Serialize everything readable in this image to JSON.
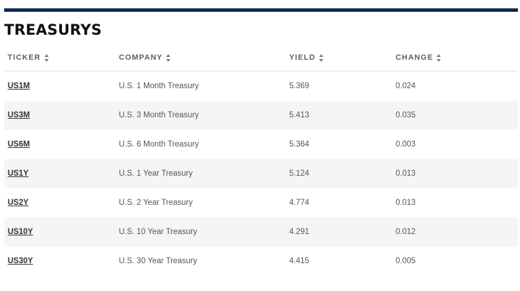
{
  "title": "TREASURYS",
  "columns": {
    "ticker": "TICKER",
    "company": "COMPANY",
    "yield": "YIELD",
    "change": "CHANGE"
  },
  "rows": [
    {
      "ticker": "US1M",
      "company": "U.S. 1 Month Treasury",
      "yield": "5.369",
      "change": "0.024"
    },
    {
      "ticker": "US3M",
      "company": "U.S. 3 Month Treasury",
      "yield": "5.413",
      "change": "0.035"
    },
    {
      "ticker": "US6M",
      "company": "U.S. 6 Month Treasury",
      "yield": "5.364",
      "change": "0.003"
    },
    {
      "ticker": "US1Y",
      "company": "U.S. 1 Year Treasury",
      "yield": "5.124",
      "change": "0.013"
    },
    {
      "ticker": "US2Y",
      "company": "U.S. 2 Year Treasury",
      "yield": "4.774",
      "change": "0.013"
    },
    {
      "ticker": "US10Y",
      "company": "U.S. 10 Year Treasury",
      "yield": "4.291",
      "change": "0.012"
    },
    {
      "ticker": "US30Y",
      "company": "U.S. 30 Year Treasury",
      "yield": "4.415",
      "change": "0.005"
    }
  ],
  "colors": {
    "accent_rule": "#0f2a52",
    "stripe": "#f5f5f5"
  },
  "icons": {
    "sort": "sort-icon"
  }
}
